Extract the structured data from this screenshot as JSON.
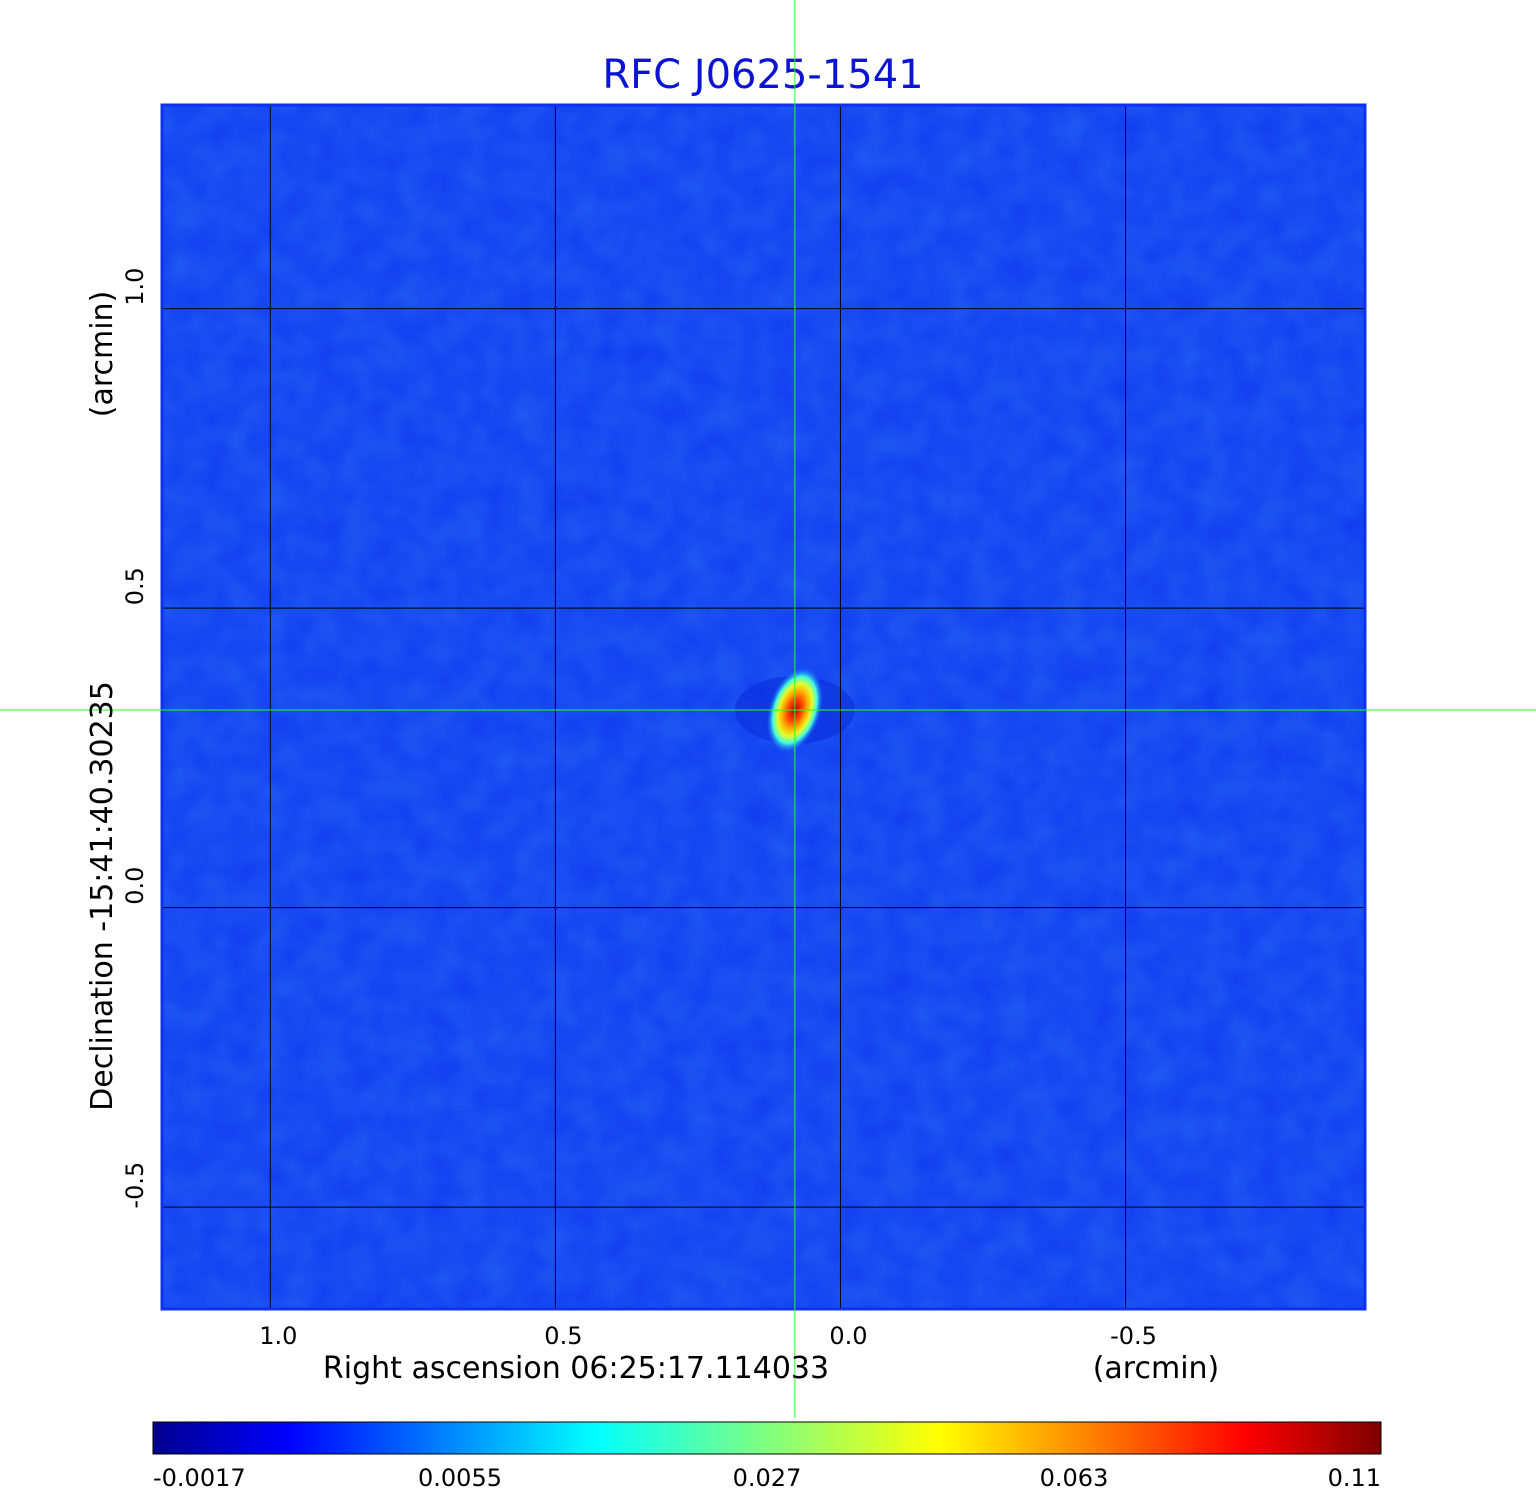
{
  "chart_data": {
    "type": "heatmap",
    "title": "RFC J0625-1541",
    "xlabel": "Right ascension  06:25:17.114033",
    "xunit": "(arcmin)",
    "ylabel": "Declination  -15:41:40.30235",
    "yunit": "(arcmin)",
    "xlim": [
      1.19,
      -0.92
    ],
    "ylim": [
      -0.67,
      1.34
    ],
    "x_ticks": [
      {
        "value": 1.0,
        "label": "1.0"
      },
      {
        "value": 0.5,
        "label": "0.5"
      },
      {
        "value": 0.0,
        "label": "0.0"
      },
      {
        "value": -0.5,
        "label": "-0.5"
      }
    ],
    "y_ticks": [
      {
        "value": 1.0,
        "label": "1.0"
      },
      {
        "value": 0.5,
        "label": "0.5"
      },
      {
        "value": 0.0,
        "label": "0.0"
      },
      {
        "value": -0.5,
        "label": "-0.5"
      }
    ],
    "grid": true,
    "colormap": "jet",
    "colorbar": {
      "min": -0.0017,
      "max": 0.11,
      "tick_labels": [
        "-0.0017",
        "0.0055",
        "0.027",
        "0.063",
        "0.11"
      ]
    },
    "source_peak": {
      "x": 0.08,
      "y": 0.33,
      "value": 0.11
    },
    "crosshair": {
      "x": 0.08,
      "y": 0.33
    }
  },
  "colors": {
    "title": "#0a14d2",
    "background_field": "#0f3cf0",
    "grid": "#000000",
    "crosshair": "#20ff20"
  }
}
